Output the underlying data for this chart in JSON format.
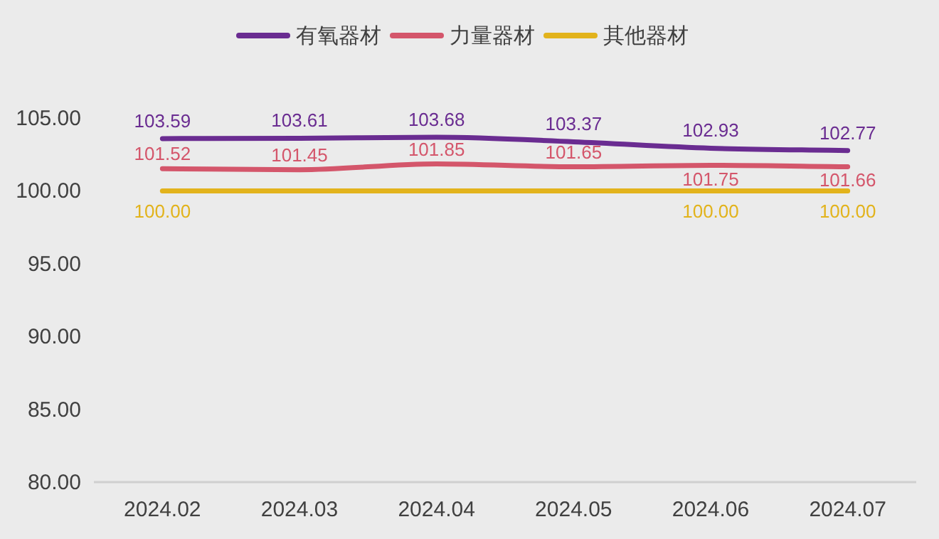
{
  "chart_data": {
    "type": "line",
    "categories": [
      "2024.02",
      "2024.03",
      "2024.04",
      "2024.05",
      "2024.06",
      "2024.07"
    ],
    "series": [
      {
        "name": "有氧器材",
        "color": "#6a2c91",
        "values": [
          103.59,
          103.61,
          103.68,
          103.37,
          102.93,
          102.77
        ],
        "value_labels": [
          "103.59",
          "103.61",
          "103.68",
          "103.37",
          "102.93",
          "102.77"
        ]
      },
      {
        "name": "力量器材",
        "color": "#d4566b",
        "values": [
          101.52,
          101.45,
          101.85,
          101.65,
          101.75,
          101.66
        ],
        "value_labels": [
          "101.52",
          "101.45",
          "101.85",
          "101.65",
          "101.75",
          "101.66"
        ]
      },
      {
        "name": "其他器材",
        "color": "#e2b31c",
        "values": [
          100,
          100,
          100,
          100,
          100,
          100
        ],
        "value_labels": [
          "100.00",
          null,
          null,
          null,
          "100.00",
          "100.00"
        ]
      }
    ],
    "ylim": [
      80,
      105
    ],
    "yticks": [
      {
        "value": 80,
        "label": "80.00"
      },
      {
        "value": 85,
        "label": "85.00"
      },
      {
        "value": 90,
        "label": "90.00"
      },
      {
        "value": 95,
        "label": "95.00"
      },
      {
        "value": 100,
        "label": "100.00"
      },
      {
        "value": 105,
        "label": "105.00"
      }
    ],
    "grid": false,
    "legend": "top",
    "marker": "none",
    "line_style": "solid"
  }
}
